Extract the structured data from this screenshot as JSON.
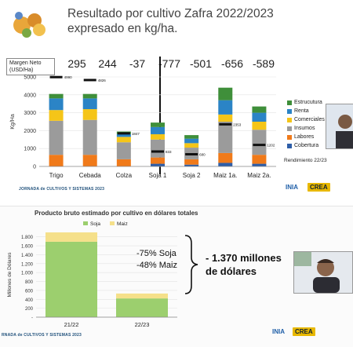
{
  "top_slide": {
    "title": "Resultado por cultivo Zafra 2022/2023 expresado en kg/ha.",
    "margin_label": "Margen Neto (USD/Ha)",
    "margins": [
      "295",
      "244",
      "-37",
      "-777",
      "-501",
      "-656",
      "-589"
    ],
    "footer": "JORNADA de CULTIVOS Y SISTEMAS 2023",
    "brand": "INIA",
    "brand2": "CREA",
    "rendimiento_label": "Rendimiento 22/23"
  },
  "bottom_slide": {
    "title": "Producto bruto estimado por cultivo en dólares totales",
    "pct_line1": "-75% Soja",
    "pct_line2": "-48% Maiz",
    "total_line1": "- 1.370 millones",
    "total_line2": "de dólares",
    "footer": "RNADA de CULTIVOS Y SISTEMAS 2023",
    "brand": "INIA",
    "brand2": "CREA"
  },
  "colors": {
    "cobertura": "#2e5ea8",
    "labores": "#f07a1a",
    "insumos": "#9b9b9b",
    "comerciales": "#f5c518",
    "renta": "#2b84c6",
    "estructura": "#3f8f3a",
    "soja": "#9ccf6e",
    "maiz": "#f5e08a"
  },
  "chart_data": [
    {
      "type": "bar",
      "stacked": true,
      "categories": [
        "Trigo",
        "Cebada",
        "Colza",
        "Soja 1",
        "Soja 2",
        "Maiz 1a.",
        "Maiz 2a."
      ],
      "ylabel": "Kg/Ha",
      "ylim": [
        0,
        5000
      ],
      "yticks": [
        "0",
        "1000",
        "2000",
        "3000",
        "4000",
        "5000"
      ],
      "series": [
        {
          "name": "Cobertura",
          "values": [
            0,
            0,
            0,
            150,
            100,
            200,
            150
          ]
        },
        {
          "name": "Labores",
          "values": [
            650,
            650,
            400,
            350,
            300,
            550,
            500
          ]
        },
        {
          "name": "Insumos",
          "values": [
            1900,
            1950,
            950,
            1000,
            650,
            1750,
            1400
          ]
        },
        {
          "name": "Comerciales",
          "values": [
            600,
            600,
            300,
            300,
            250,
            400,
            450
          ]
        },
        {
          "name": "Renta",
          "values": [
            650,
            600,
            150,
            400,
            250,
            800,
            500
          ]
        },
        {
          "name": "Estructura",
          "values": [
            250,
            250,
            150,
            250,
            200,
            700,
            350
          ]
        }
      ],
      "legend_order": [
        "Estrucutura",
        "Renta",
        "Comerciales",
        "Insumos",
        "Labores",
        "Cobertura"
      ],
      "rendimiento": {
        "name": "Rendimiento 22/23",
        "values": [
          4990,
          4826,
          1847,
          833,
          680,
          2353,
          1202
        ],
        "labels": [
          "4990",
          "4826",
          "1847",
          "833",
          "680",
          "2353",
          "1202"
        ]
      }
    },
    {
      "type": "bar",
      "stacked": true,
      "categories": [
        "21/22",
        "22/23"
      ],
      "ylabel": "Millones de Dólares",
      "ylim": [
        0,
        1900
      ],
      "yticks": [
        "-",
        "200",
        "400",
        "600",
        "800",
        "1.000",
        "1.200",
        "1.400",
        "1.600",
        "1.800"
      ],
      "series": [
        {
          "name": "Soja",
          "values": [
            1690,
            420
          ]
        },
        {
          "name": "Maiz",
          "values": [
            210,
            110
          ]
        }
      ]
    }
  ]
}
